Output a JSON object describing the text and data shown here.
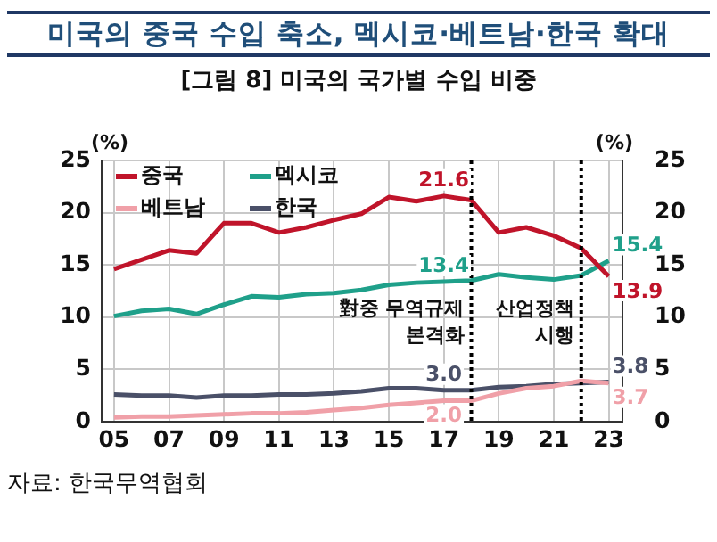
{
  "chart_data": {
    "type": "line",
    "title": "미국의 중국 수입 축소, 멕시코·베트남·한국 확대",
    "subtitle": "[그림 8] 미국의 국가별 수입 비중",
    "ylabel": "(%)",
    "y2label": "(%)",
    "x": [
      2005,
      2006,
      2007,
      2008,
      2009,
      2010,
      2011,
      2012,
      2013,
      2014,
      2015,
      2016,
      2017,
      2018,
      2019,
      2020,
      2021,
      2022,
      2023
    ],
    "series": [
      {
        "name": "중국",
        "color": "#c0142a",
        "values": [
          14.6,
          15.5,
          16.4,
          16.1,
          19.0,
          19.0,
          18.1,
          18.6,
          19.3,
          19.9,
          21.5,
          21.1,
          21.6,
          21.2,
          18.1,
          18.6,
          17.8,
          16.6,
          13.9
        ],
        "value_labels": [
          null,
          null,
          null,
          null,
          null,
          null,
          null,
          null,
          null,
          null,
          null,
          null,
          "21.6",
          null,
          null,
          null,
          null,
          null,
          "13.9"
        ]
      },
      {
        "name": "멕시코",
        "color": "#1fa08a",
        "values": [
          10.1,
          10.6,
          10.8,
          10.3,
          11.2,
          12.0,
          11.9,
          12.2,
          12.3,
          12.6,
          13.1,
          13.3,
          13.4,
          13.5,
          14.1,
          13.8,
          13.6,
          14.0,
          15.4
        ],
        "value_labels": [
          null,
          null,
          null,
          null,
          null,
          null,
          null,
          null,
          null,
          null,
          null,
          null,
          "13.4",
          null,
          null,
          null,
          null,
          null,
          "15.4"
        ]
      },
      {
        "name": "베트남",
        "color": "#f0a0a8",
        "values": [
          0.4,
          0.5,
          0.5,
          0.6,
          0.7,
          0.8,
          0.8,
          0.9,
          1.1,
          1.3,
          1.6,
          1.8,
          2.0,
          2.0,
          2.7,
          3.2,
          3.4,
          3.9,
          3.7
        ],
        "value_labels": [
          null,
          null,
          null,
          null,
          null,
          null,
          null,
          null,
          null,
          null,
          null,
          null,
          "2.0",
          null,
          null,
          null,
          null,
          null,
          "3.7"
        ]
      },
      {
        "name": "한국",
        "color": "#4a5068",
        "values": [
          2.6,
          2.5,
          2.5,
          2.3,
          2.5,
          2.5,
          2.6,
          2.6,
          2.7,
          2.9,
          3.2,
          3.2,
          3.0,
          3.0,
          3.3,
          3.4,
          3.6,
          3.7,
          3.8
        ],
        "value_labels": [
          null,
          null,
          null,
          null,
          null,
          null,
          null,
          null,
          null,
          null,
          null,
          null,
          "3.0",
          null,
          null,
          null,
          null,
          null,
          "3.8"
        ]
      }
    ],
    "xlim": [
      2004.55,
      2023.5
    ],
    "xticks": [
      {
        "value": 2005,
        "label": "05"
      },
      {
        "value": 2007,
        "label": "07"
      },
      {
        "value": 2009,
        "label": "09"
      },
      {
        "value": 2011,
        "label": "11"
      },
      {
        "value": 2013,
        "label": "13"
      },
      {
        "value": 2015,
        "label": "15"
      },
      {
        "value": 2017,
        "label": "17"
      },
      {
        "value": 2019,
        "label": "19"
      },
      {
        "value": 2021,
        "label": "21"
      },
      {
        "value": 2023,
        "label": "23"
      }
    ],
    "ylim": [
      0,
      25
    ],
    "yticks": [
      0,
      5,
      10,
      15,
      20,
      25
    ],
    "y2lim": [
      0,
      25
    ],
    "y2ticks": [
      0,
      5,
      10,
      15,
      20,
      25
    ],
    "ref_lines": [
      {
        "axis": "x",
        "value": 2018,
        "label": "對중 무역규제 본격화",
        "line_style": "dotted",
        "color": "#000000"
      },
      {
        "axis": "x",
        "value": 2022,
        "label": "산업정책 시행",
        "line_style": "dotted",
        "color": "#000000"
      }
    ],
    "annotations": [
      "자료: 한국무역협회"
    ],
    "grid": true,
    "legend": "top left",
    "marker": "none",
    "line_style": "solid"
  }
}
